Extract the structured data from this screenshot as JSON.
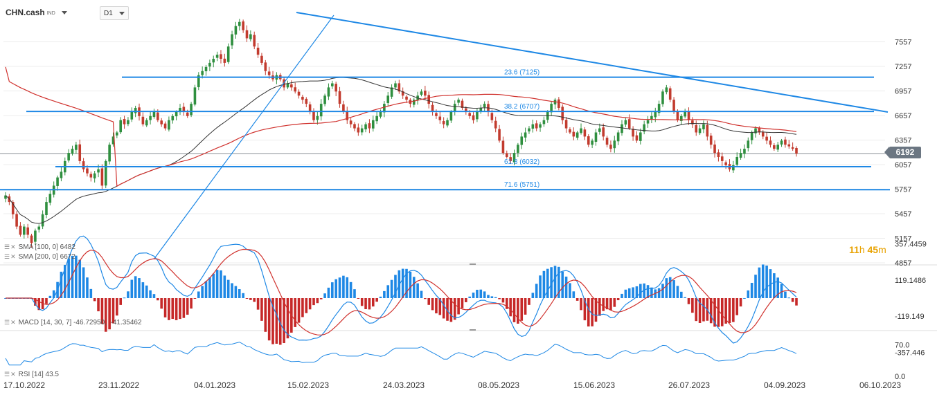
{
  "header": {
    "symbol": "CHN.cash",
    "symbol_type": "IND",
    "timeframe": "D1"
  },
  "timer": {
    "hours": "11",
    "h_unit": "h",
    "minutes": "45",
    "m_unit": "m"
  },
  "price_badge": "6192",
  "indicators": {
    "sma100": {
      "label": "SMA [100,  0]",
      "value": "6482"
    },
    "sma200": {
      "label": "SMA [200,  0]",
      "value": "6672"
    },
    "macd": {
      "label": "MACD  [14,  30,  7]",
      "v1": "-46.72950,",
      "v2": "-41.35462"
    },
    "rsi": {
      "label": "RSI  [14]",
      "value": "43.5"
    }
  },
  "chart_data": {
    "type": "candlestick",
    "main_axis": {
      "ticks": [
        "7557",
        "7257",
        "6957",
        "6657",
        "6357",
        "6057",
        "5757",
        "5457",
        "5157",
        "4857"
      ],
      "range": [
        4857,
        7857
      ]
    },
    "macd_axis": {
      "ticks": [
        "357.4459",
        "119.1486",
        "-119.149",
        "-357.446"
      ]
    },
    "rsi_axis": {
      "ticks": [
        "70.0",
        "0.0"
      ]
    },
    "x_labels": [
      "17.10.2022",
      "23.11.2022",
      "04.01.2023",
      "15.02.2023",
      "24.03.2023",
      "08.05.2023",
      "15.06.2023",
      "26.07.2023",
      "04.09.2023",
      "06.10.2023"
    ],
    "fib_levels": [
      {
        "label": "23.6 (7125)",
        "value": 7125
      },
      {
        "label": "38.2 (6707)",
        "value": 6707
      },
      {
        "label": "61.8 (6032)",
        "value": 6032
      },
      {
        "label": "71.6 (5751)",
        "value": 5751
      }
    ],
    "last_price": 6192,
    "closes": [
      5680,
      5600,
      5450,
      5300,
      5200,
      5300,
      5200,
      5100,
      5250,
      5300,
      5450,
      5600,
      5700,
      5800,
      5900,
      5970,
      6100,
      6200,
      6250,
      6300,
      6100,
      6000,
      5950,
      5900,
      5950,
      6000,
      5800,
      6100,
      6300,
      6400,
      6450,
      6600,
      6550,
      6600,
      6700,
      6750,
      6650,
      6550,
      6600,
      6650,
      6700,
      6600,
      6550,
      6500,
      6600,
      6650,
      6700,
      6750,
      6700,
      6650,
      6800,
      7000,
      7150,
      7200,
      7250,
      7300,
      7350,
      7400,
      7350,
      7300,
      7500,
      7650,
      7750,
      7800,
      7700,
      7600,
      7650,
      7500,
      7400,
      7300,
      7200,
      7150,
      7100,
      7150,
      7100,
      7000,
      7050,
      7000,
      6950,
      6900,
      6850,
      6800,
      6700,
      6600,
      6650,
      6800,
      6900,
      7000,
      7050,
      6950,
      6800,
      6700,
      6600,
      6550,
      6500,
      6450,
      6500,
      6550,
      6500,
      6600,
      6650,
      6700,
      6800,
      6900,
      7000,
      7050,
      6950,
      6900,
      6850,
      6800,
      6850,
      6900,
      6950,
      6900,
      6800,
      6700,
      6650,
      6600,
      6550,
      6600,
      6700,
      6800,
      6850,
      6750,
      6700,
      6650,
      6600,
      6700,
      6750,
      6800,
      6700,
      6600,
      6500,
      6350,
      6200,
      6150,
      6100,
      6200,
      6300,
      6400,
      6450,
      6500,
      6550,
      6500,
      6550,
      6600,
      6700,
      6800,
      6850,
      6750,
      6600,
      6500,
      6450,
      6400,
      6450,
      6500,
      6400,
      6300,
      6350,
      6450,
      6500,
      6400,
      6300,
      6250,
      6350,
      6450,
      6550,
      6600,
      6500,
      6400,
      6350,
      6450,
      6550,
      6600,
      6650,
      6700,
      6800,
      6950,
      7000,
      6850,
      6700,
      6600,
      6650,
      6700,
      6600,
      6550,
      6450,
      6500,
      6550,
      6400,
      6300,
      6200,
      6150,
      6100,
      6050,
      6000,
      6050,
      6150,
      6200,
      6250,
      6350,
      6450,
      6500,
      6450,
      6400,
      6350,
      6300,
      6250,
      6300,
      6350,
      6300,
      6280,
      6250,
      6192
    ],
    "sma100": {
      "name": "SMA [100, 0]",
      "color": "#333333"
    },
    "sma200": {
      "name": "SMA [200, 0]",
      "color": "#d0312d"
    },
    "colors": {
      "up": "#2f8f3f",
      "down": "#c23b2e",
      "line": "#1e88e5",
      "macd_signal": "#d0312d",
      "macd_line": "#1e88e5",
      "grid": "#ececec"
    }
  }
}
